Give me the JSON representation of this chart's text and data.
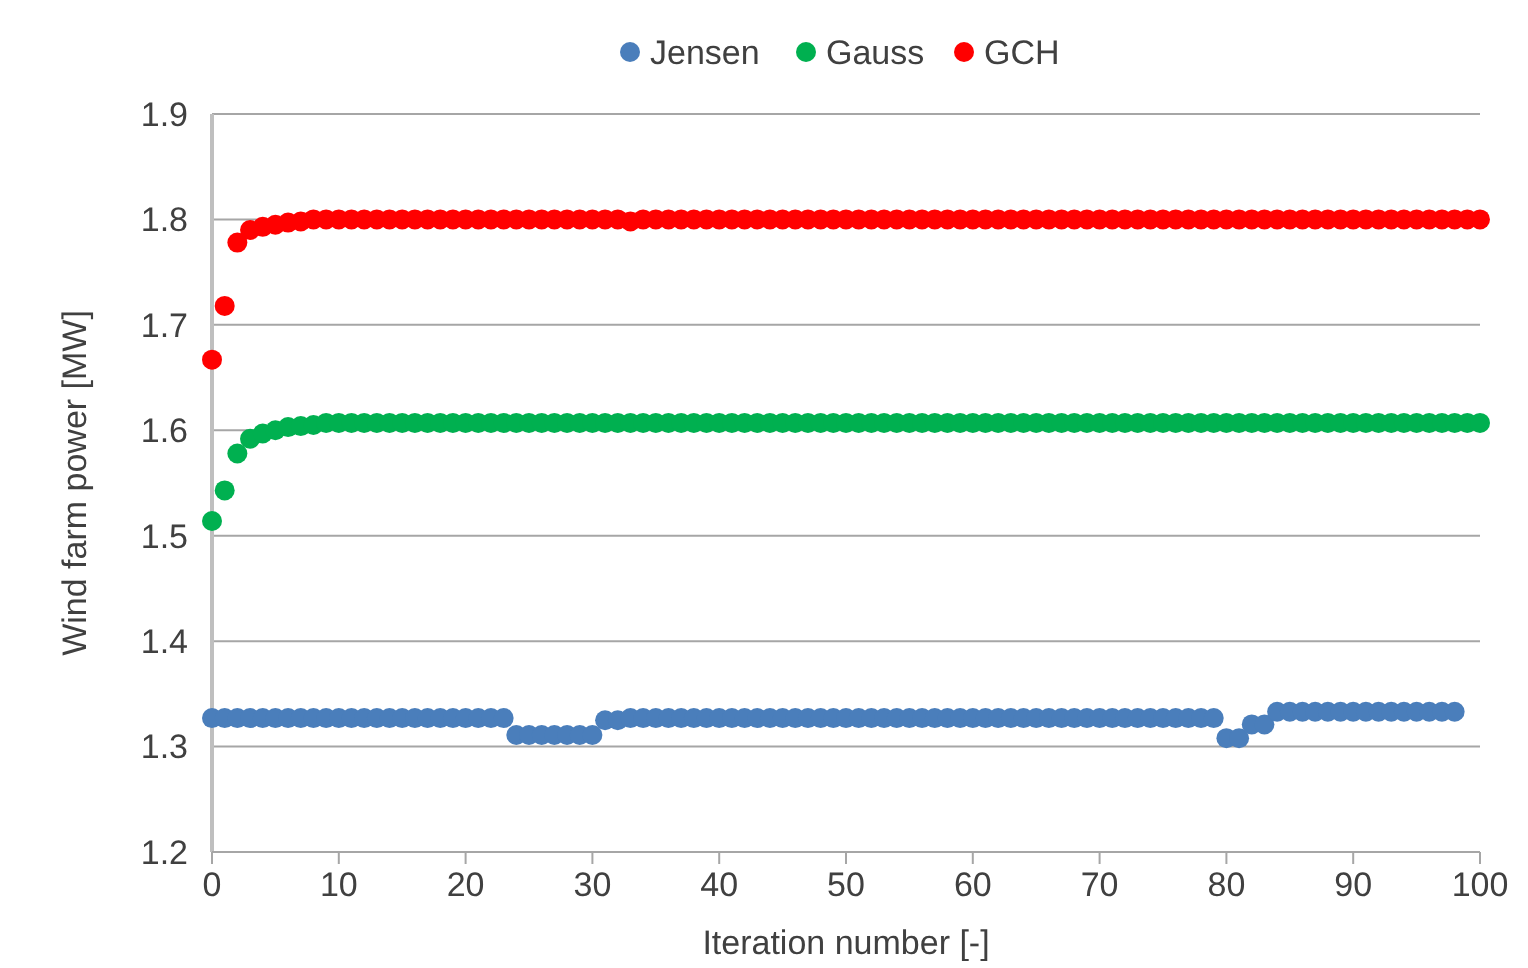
{
  "chart_data": {
    "type": "scatter",
    "xlabel": "Iteration number [-]",
    "ylabel": "Wind farm power [MW]",
    "x": [
      0,
      1,
      2,
      3,
      4,
      5,
      6,
      7,
      8,
      9,
      10,
      11,
      12,
      13,
      14,
      15,
      16,
      17,
      18,
      19,
      20,
      21,
      22,
      23,
      24,
      25,
      26,
      27,
      28,
      29,
      30,
      31,
      32,
      33,
      34,
      35,
      36,
      37,
      38,
      39,
      40,
      41,
      42,
      43,
      44,
      45,
      46,
      47,
      48,
      49,
      50,
      51,
      52,
      53,
      54,
      55,
      56,
      57,
      58,
      59,
      60,
      61,
      62,
      63,
      64,
      65,
      66,
      67,
      68,
      69,
      70,
      71,
      72,
      73,
      74,
      75,
      76,
      77,
      78,
      79,
      80,
      81,
      82,
      83,
      84,
      85,
      86,
      87,
      88,
      89,
      90,
      91,
      92,
      93,
      94,
      95,
      96,
      97,
      98,
      99,
      100
    ],
    "series": [
      {
        "name": "Jensen",
        "color": "#4a7ebb",
        "values": [
          1.327,
          1.327,
          1.327,
          1.327,
          1.327,
          1.327,
          1.327,
          1.327,
          1.327,
          1.327,
          1.327,
          1.327,
          1.327,
          1.327,
          1.327,
          1.327,
          1.327,
          1.327,
          1.327,
          1.327,
          1.327,
          1.327,
          1.327,
          1.327,
          1.311,
          1.311,
          1.311,
          1.311,
          1.311,
          1.311,
          1.311,
          1.325,
          1.325,
          1.327,
          1.327,
          1.327,
          1.327,
          1.327,
          1.327,
          1.327,
          1.327,
          1.327,
          1.327,
          1.327,
          1.327,
          1.327,
          1.327,
          1.327,
          1.327,
          1.327,
          1.327,
          1.327,
          1.327,
          1.327,
          1.327,
          1.327,
          1.327,
          1.327,
          1.327,
          1.327,
          1.327,
          1.327,
          1.327,
          1.327,
          1.327,
          1.327,
          1.327,
          1.327,
          1.327,
          1.327,
          1.327,
          1.327,
          1.327,
          1.327,
          1.327,
          1.327,
          1.327,
          1.327,
          1.327,
          1.327,
          1.308,
          1.308,
          1.321,
          1.321,
          1.333,
          1.333,
          1.333,
          1.333,
          1.333,
          1.333,
          1.333,
          1.333,
          1.333,
          1.333,
          1.333,
          1.333,
          1.333,
          1.333,
          1.333,
          null,
          null
        ]
      },
      {
        "name": "Gauss",
        "color": "#00b050",
        "values": [
          1.514,
          1.543,
          1.578,
          1.592,
          1.597,
          1.6,
          1.603,
          1.604,
          1.605,
          1.607,
          1.607,
          1.607,
          1.607,
          1.607,
          1.607,
          1.607,
          1.607,
          1.607,
          1.607,
          1.607,
          1.607,
          1.607,
          1.607,
          1.607,
          1.607,
          1.607,
          1.607,
          1.607,
          1.607,
          1.607,
          1.607,
          1.607,
          1.607,
          1.607,
          1.607,
          1.607,
          1.607,
          1.607,
          1.607,
          1.607,
          1.607,
          1.607,
          1.607,
          1.607,
          1.607,
          1.607,
          1.607,
          1.607,
          1.607,
          1.607,
          1.607,
          1.607,
          1.607,
          1.607,
          1.607,
          1.607,
          1.607,
          1.607,
          1.607,
          1.607,
          1.607,
          1.607,
          1.607,
          1.607,
          1.607,
          1.607,
          1.607,
          1.607,
          1.607,
          1.607,
          1.607,
          1.607,
          1.607,
          1.607,
          1.607,
          1.607,
          1.607,
          1.607,
          1.607,
          1.607,
          1.607,
          1.607,
          1.607,
          1.607,
          1.607,
          1.607,
          1.607,
          1.607,
          1.607,
          1.607,
          1.607,
          1.607,
          1.607,
          1.607,
          1.607,
          1.607,
          1.607,
          1.607,
          1.607,
          1.607,
          1.607
        ]
      },
      {
        "name": "GCH",
        "color": "#ff0000",
        "values": [
          1.667,
          1.718,
          1.778,
          1.79,
          1.793,
          1.795,
          1.797,
          1.798,
          1.8,
          1.8,
          1.8,
          1.8,
          1.8,
          1.8,
          1.8,
          1.8,
          1.8,
          1.8,
          1.8,
          1.8,
          1.8,
          1.8,
          1.8,
          1.8,
          1.8,
          1.8,
          1.8,
          1.8,
          1.8,
          1.8,
          1.8,
          1.8,
          1.8,
          1.798,
          1.8,
          1.8,
          1.8,
          1.8,
          1.8,
          1.8,
          1.8,
          1.8,
          1.8,
          1.8,
          1.8,
          1.8,
          1.8,
          1.8,
          1.8,
          1.8,
          1.8,
          1.8,
          1.8,
          1.8,
          1.8,
          1.8,
          1.8,
          1.8,
          1.8,
          1.8,
          1.8,
          1.8,
          1.8,
          1.8,
          1.8,
          1.8,
          1.8,
          1.8,
          1.8,
          1.8,
          1.8,
          1.8,
          1.8,
          1.8,
          1.8,
          1.8,
          1.8,
          1.8,
          1.8,
          1.8,
          1.8,
          1.8,
          1.8,
          1.8,
          1.8,
          1.8,
          1.8,
          1.8,
          1.8,
          1.8,
          1.8,
          1.8,
          1.8,
          1.8,
          1.8,
          1.8,
          1.8,
          1.8,
          1.8,
          1.8,
          1.8
        ]
      }
    ],
    "xlim": [
      0,
      100
    ],
    "xticks": [
      0,
      10,
      20,
      30,
      40,
      50,
      60,
      70,
      80,
      90,
      100
    ],
    "ylim": [
      1.2,
      1.9
    ],
    "yticks": [
      1.2,
      1.3,
      1.4,
      1.5,
      1.6,
      1.7,
      1.8,
      1.9
    ],
    "grid": "y",
    "legend": "top",
    "marker": "circle"
  }
}
